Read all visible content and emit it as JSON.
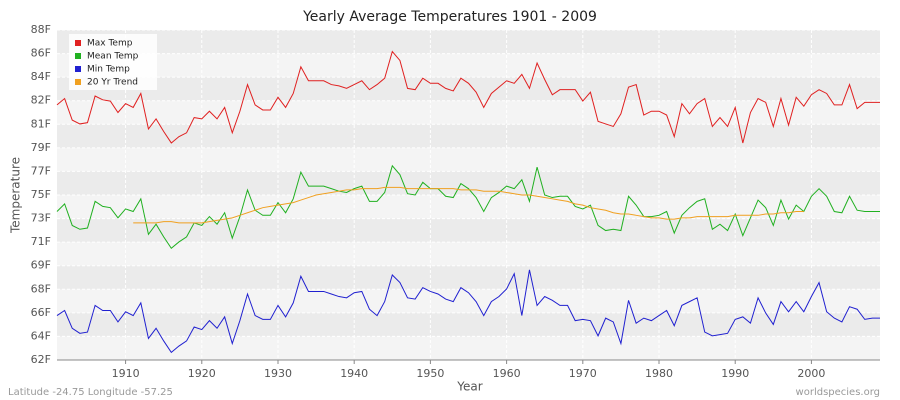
{
  "chart_data": {
    "type": "line",
    "title": "Yearly Average Temperatures 1901 - 2009",
    "x_label": "Year",
    "y_label": "Temperature",
    "footer_left": "Latitude -24.75 Longitude -57.25",
    "footer_right": "worldspecies.org",
    "grid": true,
    "legend_position": "top-left",
    "xlim": [
      1901,
      2009
    ],
    "xticks": [
      1910,
      1920,
      1930,
      1940,
      1950,
      1960,
      1970,
      1980,
      1990,
      2000
    ],
    "ylim": [
      62,
      88
    ],
    "yticks": [
      {
        "value": 62,
        "label": "62F"
      },
      {
        "value": 63.857,
        "label": "64F"
      },
      {
        "value": 65.714,
        "label": "66F"
      },
      {
        "value": 67.571,
        "label": "68F"
      },
      {
        "value": 69.429,
        "label": "69F"
      },
      {
        "value": 71.286,
        "label": "71F"
      },
      {
        "value": 73.143,
        "label": "73F"
      },
      {
        "value": 75,
        "label": "75F"
      },
      {
        "value": 76.857,
        "label": "77F"
      },
      {
        "value": 78.714,
        "label": "79F"
      },
      {
        "value": 80.571,
        "label": "81F"
      },
      {
        "value": 82.429,
        "label": "82F"
      },
      {
        "value": 84.286,
        "label": "84F"
      },
      {
        "value": 86.143,
        "label": "86F"
      },
      {
        "value": 88,
        "label": "88F"
      }
    ],
    "x": [
      1901,
      1902,
      1903,
      1904,
      1905,
      1906,
      1907,
      1908,
      1909,
      1910,
      1911,
      1912,
      1913,
      1914,
      1915,
      1916,
      1917,
      1918,
      1919,
      1920,
      1921,
      1922,
      1923,
      1924,
      1925,
      1926,
      1927,
      1928,
      1929,
      1930,
      1931,
      1932,
      1933,
      1934,
      1935,
      1936,
      1937,
      1938,
      1939,
      1940,
      1941,
      1942,
      1943,
      1944,
      1945,
      1946,
      1947,
      1948,
      1949,
      1950,
      1951,
      1952,
      1953,
      1954,
      1955,
      1956,
      1957,
      1958,
      1959,
      1960,
      1961,
      1962,
      1963,
      1964,
      1965,
      1966,
      1967,
      1968,
      1969,
      1970,
      1971,
      1972,
      1973,
      1974,
      1975,
      1976,
      1977,
      1978,
      1979,
      1980,
      1981,
      1982,
      1983,
      1984,
      1985,
      1986,
      1987,
      1988,
      1989,
      1990,
      1991,
      1992,
      1993,
      1994,
      1995,
      1996,
      1997,
      1998,
      1999,
      2000,
      2001,
      2002,
      2003,
      2004,
      2005,
      2006,
      2007,
      2008,
      2009
    ],
    "series": [
      {
        "name": "Max Temp",
        "color": "#e02020",
        "values": [
          82.1,
          82.6,
          80.9,
          80.6,
          80.7,
          82.8,
          82.5,
          82.4,
          81.5,
          82.2,
          81.9,
          83.0,
          80.2,
          81.0,
          80.0,
          79.1,
          79.6,
          79.9,
          81.1,
          81.0,
          81.6,
          81.0,
          81.9,
          79.9,
          81.6,
          83.7,
          82.1,
          81.7,
          81.7,
          82.7,
          81.9,
          83.0,
          85.1,
          84.0,
          84.0,
          84.0,
          83.7,
          83.6,
          83.4,
          83.7,
          84.0,
          83.3,
          83.7,
          84.2,
          86.3,
          85.6,
          83.4,
          83.3,
          84.2,
          83.8,
          83.8,
          83.4,
          83.2,
          84.2,
          83.8,
          83.1,
          81.9,
          83.0,
          83.5,
          84.0,
          83.8,
          84.5,
          83.4,
          85.4,
          84.1,
          82.9,
          83.3,
          83.3,
          83.3,
          82.4,
          83.1,
          80.8,
          80.6,
          80.4,
          81.4,
          83.5,
          83.7,
          81.3,
          81.6,
          81.6,
          81.3,
          79.6,
          82.2,
          81.4,
          82.2,
          82.6,
          80.4,
          81.1,
          80.4,
          81.9,
          79.1,
          81.5,
          82.6,
          82.3,
          80.4,
          82.6,
          80.5,
          82.7,
          82.0,
          82.9,
          83.3,
          83.0,
          82.1,
          82.1,
          83.7,
          81.8,
          82.3,
          82.3,
          82.3
        ]
      },
      {
        "name": "Mean Temp",
        "color": "#20b020",
        "values": [
          73.7,
          74.3,
          72.6,
          72.3,
          72.4,
          74.5,
          74.1,
          74.0,
          73.2,
          73.9,
          73.7,
          74.7,
          71.9,
          72.7,
          71.7,
          70.8,
          71.3,
          71.7,
          72.8,
          72.6,
          73.3,
          72.7,
          73.6,
          71.6,
          73.3,
          75.4,
          73.8,
          73.4,
          73.4,
          74.4,
          73.6,
          74.7,
          76.8,
          75.7,
          75.7,
          75.7,
          75.5,
          75.3,
          75.2,
          75.5,
          75.7,
          74.5,
          74.5,
          75.2,
          77.3,
          76.6,
          75.1,
          75.0,
          76.0,
          75.5,
          75.5,
          74.9,
          74.8,
          75.9,
          75.5,
          74.8,
          73.7,
          74.8,
          75.2,
          75.7,
          75.5,
          76.2,
          74.5,
          77.2,
          75.0,
          74.8,
          74.9,
          74.9,
          74.1,
          73.9,
          74.2,
          72.6,
          72.2,
          72.3,
          72.2,
          74.9,
          74.2,
          73.3,
          73.3,
          73.4,
          73.7,
          72.0,
          73.4,
          74.0,
          74.5,
          74.7,
          72.3,
          72.7,
          72.2,
          73.5,
          71.8,
          73.2,
          74.6,
          74.0,
          72.6,
          74.6,
          73.1,
          74.2,
          73.7,
          74.9,
          75.5,
          74.9,
          73.7,
          73.6,
          74.9,
          73.8,
          73.7,
          73.7,
          73.7
        ]
      },
      {
        "name": "Min Temp",
        "color": "#2020d0",
        "values": [
          65.5,
          65.9,
          64.5,
          64.1,
          64.2,
          66.3,
          65.9,
          65.9,
          65.0,
          65.8,
          65.5,
          66.5,
          63.7,
          64.5,
          63.5,
          62.6,
          63.1,
          63.5,
          64.6,
          64.4,
          65.1,
          64.5,
          65.4,
          63.3,
          65.1,
          67.2,
          65.5,
          65.2,
          65.2,
          66.3,
          65.4,
          66.5,
          68.6,
          67.4,
          67.4,
          67.4,
          67.2,
          67.0,
          66.9,
          67.3,
          67.4,
          66.0,
          65.5,
          66.6,
          68.7,
          68.1,
          66.9,
          66.8,
          67.7,
          67.4,
          67.2,
          66.8,
          66.6,
          67.7,
          67.3,
          66.6,
          65.5,
          66.6,
          67.0,
          67.6,
          68.8,
          65.5,
          69.1,
          66.3,
          67.0,
          66.7,
          66.3,
          66.3,
          65.1,
          65.2,
          65.1,
          63.9,
          65.3,
          65.0,
          63.3,
          66.7,
          64.9,
          65.3,
          65.1,
          65.5,
          65.9,
          64.7,
          66.3,
          66.6,
          66.9,
          64.2,
          63.9,
          64.0,
          64.1,
          65.2,
          65.4,
          64.9,
          66.9,
          65.7,
          64.8,
          66.6,
          65.8,
          66.6,
          65.8,
          67.0,
          68.1,
          65.8,
          65.3,
          65.0,
          66.2,
          66.0,
          65.2,
          65.3,
          65.3
        ]
      },
      {
        "name": "20 Yr Trend",
        "color": "#f0a020",
        "values": [
          null,
          null,
          null,
          null,
          null,
          null,
          null,
          null,
          null,
          null,
          72.8,
          72.8,
          72.8,
          72.8,
          72.9,
          72.9,
          72.8,
          72.8,
          72.8,
          72.8,
          72.9,
          73.0,
          73.1,
          73.2,
          73.4,
          73.6,
          73.8,
          74.0,
          74.1,
          74.2,
          74.3,
          74.4,
          74.6,
          74.8,
          75.0,
          75.1,
          75.2,
          75.3,
          75.4,
          75.4,
          75.5,
          75.5,
          75.5,
          75.6,
          75.6,
          75.6,
          75.5,
          75.5,
          75.5,
          75.5,
          75.5,
          75.5,
          75.5,
          75.4,
          75.4,
          75.4,
          75.3,
          75.3,
          75.3,
          75.2,
          75.1,
          75.0,
          75.0,
          74.9,
          74.8,
          74.7,
          74.6,
          74.5,
          74.3,
          74.2,
          74.0,
          73.9,
          73.8,
          73.6,
          73.5,
          73.5,
          73.4,
          73.3,
          73.2,
          73.2,
          73.1,
          73.1,
          73.2,
          73.2,
          73.3,
          73.3,
          73.3,
          73.3,
          73.3,
          73.4,
          73.4,
          73.4,
          73.4,
          73.5,
          73.5,
          73.6,
          73.6,
          73.7,
          73.7,
          null,
          null,
          null,
          null,
          null,
          null,
          null,
          null,
          null,
          null
        ]
      }
    ]
  }
}
